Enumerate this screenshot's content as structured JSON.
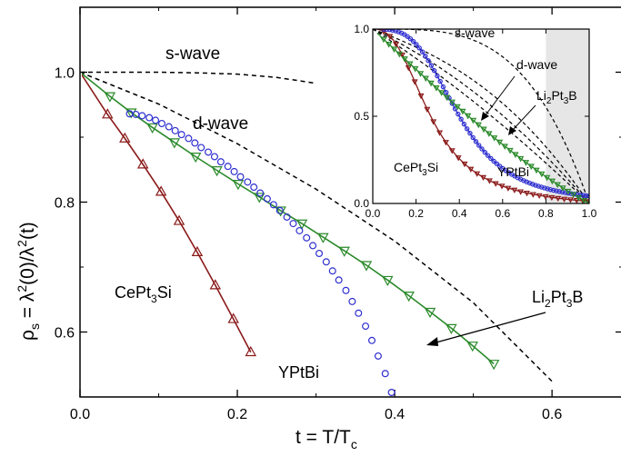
{
  "chart_data": {
    "type": "scatter",
    "xlabel": "t = T/T",
    "xlabel_sub": "c",
    "ylabel_parts": [
      "ρ",
      "s",
      " = λ",
      "2",
      "(0)/λ",
      "2",
      "(t)"
    ],
    "xlim": [
      0.0,
      0.69
    ],
    "ylim": [
      0.5,
      1.1
    ],
    "x_ticks": [
      0.0,
      0.2,
      0.4,
      0.6
    ],
    "x_tick_labels": [
      "0.0",
      "0.2",
      "0.4",
      "0.6"
    ],
    "y_ticks": [
      0.6,
      0.8,
      1.0
    ],
    "y_tick_labels": [
      "0.6",
      "0.8",
      "1.0"
    ],
    "colors": {
      "cept3si": "#8b1a1a",
      "ypbi": "#2f2fd0",
      "li2pt3b": "#2b8a2b",
      "model": "#000000"
    },
    "annotations": {
      "s_wave": "s-wave",
      "d_wave": "d-wave",
      "cept3si": [
        "CePt",
        "3",
        "Si"
      ],
      "ypbi": "YPtBi",
      "li2pt3b": [
        "Li",
        "2",
        "Pt",
        "3",
        "B"
      ]
    },
    "series": [
      {
        "key": "cept3si",
        "marker": "triangle-up",
        "points": [
          [
            0.035,
            0.935
          ],
          [
            0.057,
            0.898
          ],
          [
            0.08,
            0.858
          ],
          [
            0.103,
            0.816
          ],
          [
            0.126,
            0.771
          ],
          [
            0.149,
            0.723
          ],
          [
            0.172,
            0.672
          ],
          [
            0.195,
            0.62
          ],
          [
            0.217,
            0.569
          ]
        ]
      },
      {
        "key": "li2pt3b",
        "marker": "triangle-down",
        "points": [
          [
            0.038,
            0.963
          ],
          [
            0.065,
            0.938
          ],
          [
            0.092,
            0.915
          ],
          [
            0.12,
            0.892
          ],
          [
            0.147,
            0.87
          ],
          [
            0.174,
            0.849
          ],
          [
            0.201,
            0.828
          ],
          [
            0.228,
            0.808
          ],
          [
            0.255,
            0.787
          ],
          [
            0.282,
            0.767
          ],
          [
            0.309,
            0.746
          ],
          [
            0.336,
            0.725
          ],
          [
            0.364,
            0.703
          ],
          [
            0.391,
            0.68
          ],
          [
            0.418,
            0.656
          ],
          [
            0.445,
            0.631
          ],
          [
            0.472,
            0.606
          ],
          [
            0.499,
            0.579
          ],
          [
            0.526,
            0.551
          ]
        ]
      },
      {
        "key": "ypbi",
        "marker": "circle",
        "points": [
          [
            0.063,
            0.936
          ],
          [
            0.071,
            0.935
          ],
          [
            0.079,
            0.933
          ],
          [
            0.088,
            0.93
          ],
          [
            0.096,
            0.926
          ],
          [
            0.104,
            0.921
          ],
          [
            0.113,
            0.916
          ],
          [
            0.121,
            0.91
          ],
          [
            0.129,
            0.904
          ],
          [
            0.138,
            0.898
          ],
          [
            0.146,
            0.891
          ],
          [
            0.154,
            0.884
          ],
          [
            0.163,
            0.877
          ],
          [
            0.171,
            0.87
          ],
          [
            0.179,
            0.862
          ],
          [
            0.188,
            0.855
          ],
          [
            0.196,
            0.847
          ],
          [
            0.204,
            0.839
          ],
          [
            0.213,
            0.831
          ],
          [
            0.221,
            0.823
          ],
          [
            0.229,
            0.814
          ],
          [
            0.238,
            0.805
          ],
          [
            0.246,
            0.796
          ],
          [
            0.254,
            0.787
          ],
          [
            0.263,
            0.777
          ],
          [
            0.271,
            0.767
          ],
          [
            0.279,
            0.756
          ],
          [
            0.288,
            0.745
          ],
          [
            0.296,
            0.733
          ],
          [
            0.304,
            0.721
          ],
          [
            0.313,
            0.708
          ],
          [
            0.321,
            0.694
          ],
          [
            0.329,
            0.68
          ],
          [
            0.338,
            0.664
          ],
          [
            0.346,
            0.647
          ],
          [
            0.354,
            0.629
          ],
          [
            0.363,
            0.609
          ],
          [
            0.371,
            0.587
          ],
          [
            0.379,
            0.563
          ],
          [
            0.388,
            0.536
          ],
          [
            0.396,
            0.507
          ]
        ]
      }
    ],
    "model_curves": [
      {
        "key": "s_wave",
        "points": [
          [
            0.0,
            1.0
          ],
          [
            0.05,
            1.0
          ],
          [
            0.1,
            1.0
          ],
          [
            0.15,
            0.999
          ],
          [
            0.2,
            0.997
          ],
          [
            0.25,
            0.992
          ],
          [
            0.3,
            0.983
          ]
        ]
      },
      {
        "key": "d_wave",
        "points": [
          [
            0.0,
            1.0
          ],
          [
            0.1,
            0.951
          ],
          [
            0.2,
            0.89
          ],
          [
            0.3,
            0.82
          ],
          [
            0.4,
            0.74
          ],
          [
            0.5,
            0.645
          ],
          [
            0.6,
            0.524
          ]
        ]
      }
    ],
    "inset": {
      "xlim": [
        0.0,
        1.0
      ],
      "ylim": [
        0.0,
        1.0
      ],
      "x_tick_labels": [
        "0.0",
        "0.2",
        "0.4",
        "0.6",
        "0.8",
        "1.0"
      ],
      "y_tick_labels": [
        "0.0",
        "0.5",
        "1.0"
      ],
      "shaded_region": [
        0.8,
        1.0
      ],
      "annotations": {
        "s_wave": "s-wave",
        "d_wave": "d-wave",
        "li2pt3b": [
          "Li",
          "2",
          "Pt",
          "3",
          "B"
        ],
        "cept3si": [
          "CePt",
          "3",
          "Si"
        ],
        "ypbi": "YPtBi"
      }
    }
  }
}
